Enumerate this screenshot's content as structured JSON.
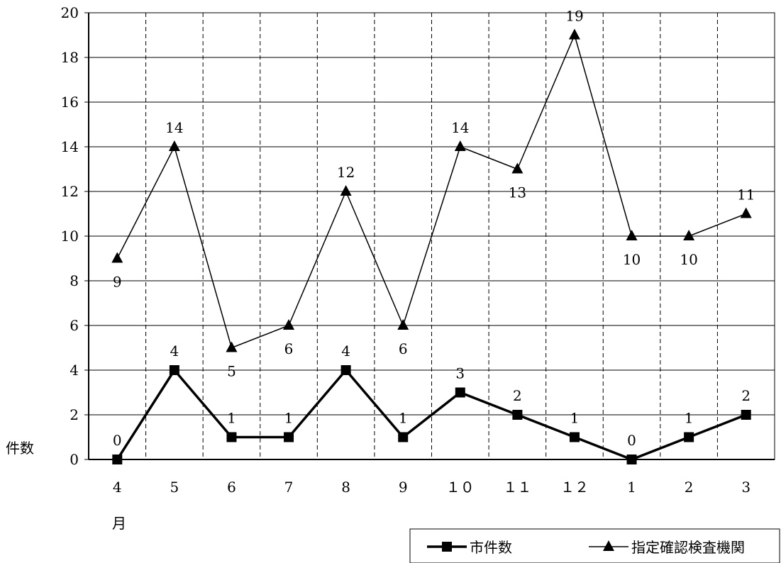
{
  "chart_data": {
    "type": "line",
    "categories": [
      "4",
      "5",
      "6",
      "7",
      "8",
      "9",
      "１０",
      "１１",
      "１２",
      "1",
      "2",
      "3"
    ],
    "xlabel": "月",
    "ylabel": "件数",
    "ylim": [
      0,
      20
    ],
    "yticks": [
      0,
      2,
      4,
      6,
      8,
      10,
      12,
      14,
      16,
      18,
      20
    ],
    "grid": {
      "horizontal": "solid",
      "vertical": "dashed"
    },
    "legend_position": "bottom-right",
    "series": [
      {
        "name": "市件数",
        "marker": "square",
        "line_weight": "thick",
        "color": "#000000",
        "values": [
          0,
          4,
          1,
          1,
          4,
          1,
          3,
          2,
          1,
          0,
          1,
          2
        ],
        "label_positions": [
          "above",
          "above",
          "above",
          "above",
          "above",
          "above",
          "above",
          "above",
          "above",
          "above",
          "above",
          "above"
        ]
      },
      {
        "name": "指定確認検査機関",
        "marker": "triangle",
        "line_weight": "thin",
        "color": "#000000",
        "values": [
          9,
          14,
          5,
          6,
          12,
          6,
          14,
          13,
          19,
          10,
          10,
          11
        ],
        "label_positions": [
          "below",
          "above",
          "below",
          "below",
          "above",
          "below",
          "above",
          "below",
          "above",
          "below",
          "below",
          "above"
        ]
      }
    ]
  }
}
